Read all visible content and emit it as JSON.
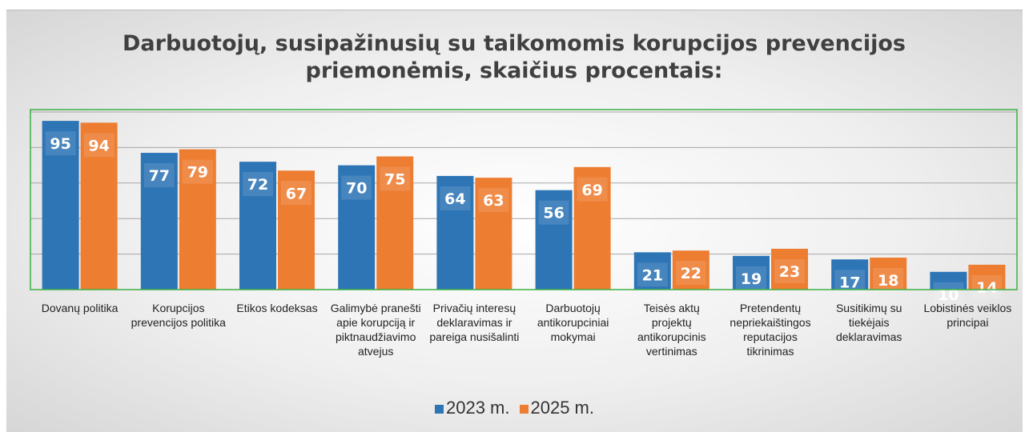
{
  "chart_data": {
    "type": "bar",
    "title": "Darbuotojų, susipažinusių su taikomomis korupcijos prevencijos priemonėmis, skaičius procentais:",
    "categories": [
      "Dovanų politika",
      "Korupcijos prevencijos politika",
      "Etikos kodeksas",
      "Galimybė pranešti apie korupciją ir piktnaudžiavimo atvejus",
      "Privačių interesų deklaravimas ir pareiga nusišalinti",
      "Darbuotojų antikorupciniai mokymai",
      "Teisės aktų projektų antikorupcinis vertinimas",
      "Pretendentų nepriekaištingos reputacijos tikrinimas",
      "Susitikimų su tiekėjais deklaravimas",
      "Lobistinės veiklos principai"
    ],
    "series": [
      {
        "name": "2023 m.",
        "color": "#2e75b6",
        "values": [
          95,
          77,
          72,
          70,
          64,
          56,
          21,
          19,
          17,
          10
        ]
      },
      {
        "name": "2025 m.",
        "color": "#ed7d31",
        "values": [
          94,
          79,
          67,
          75,
          63,
          69,
          22,
          23,
          18,
          14
        ]
      }
    ],
    "ylim": [
      0,
      100
    ],
    "yticks": [
      0,
      20,
      40,
      60,
      80,
      100
    ],
    "grid": true,
    "legend": "bottom"
  }
}
